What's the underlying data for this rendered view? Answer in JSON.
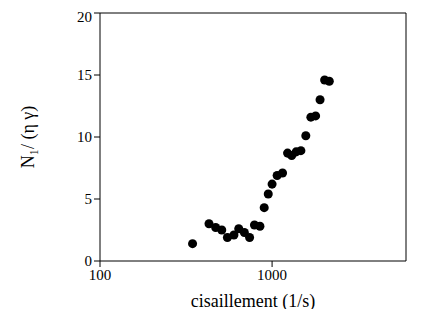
{
  "chart_data": {
    "type": "scatter",
    "x_label": "cisaillement (1/s)",
    "y_label": "N₁/ (η γ)",
    "x": [
      345,
      430,
      470,
      510,
      550,
      600,
      640,
      690,
      740,
      790,
      850,
      900,
      950,
      1000,
      1070,
      1150,
      1230,
      1300,
      1380,
      1470,
      1570,
      1680,
      1790,
      1900,
      2020,
      2150
    ],
    "values": [
      1.4,
      3.0,
      2.7,
      2.5,
      1.9,
      2.1,
      2.6,
      2.3,
      1.9,
      2.9,
      2.8,
      4.3,
      5.4,
      6.2,
      6.9,
      7.1,
      8.7,
      8.5,
      8.8,
      8.9,
      10.1,
      11.6,
      11.7,
      13.0,
      14.6,
      14.5
    ],
    "xlim": [
      100,
      6000
    ],
    "xticks": [
      100,
      1000
    ],
    "ylim": [
      0,
      20
    ],
    "yticks": [
      0,
      5,
      10,
      15,
      20
    ],
    "log": "x",
    "color": "#000000",
    "marker": "circle",
    "grid": false
  }
}
